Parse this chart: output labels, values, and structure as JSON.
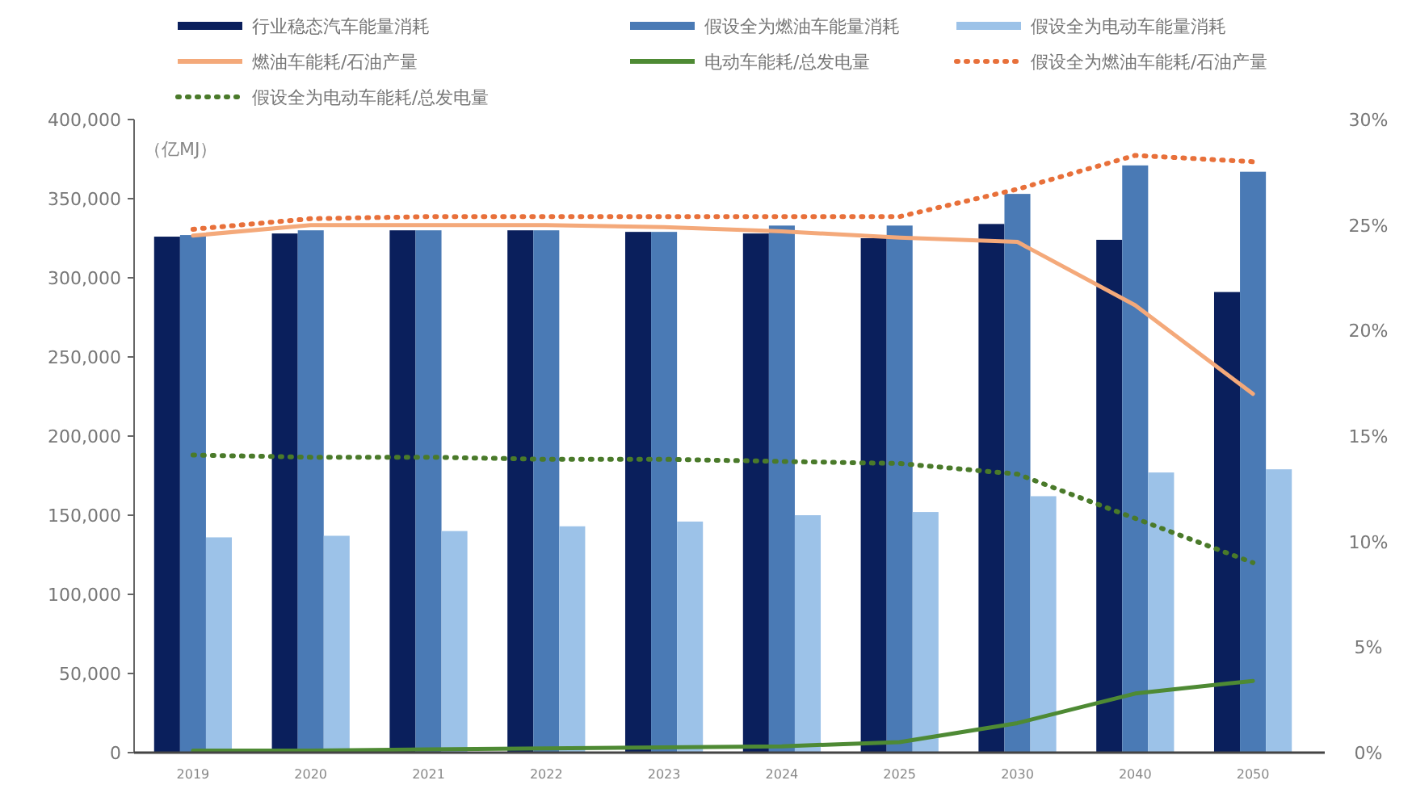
{
  "chart_data": {
    "type": "bar",
    "ylabel": "（亿MJ）",
    "categories": [
      "2019",
      "2020",
      "2021",
      "2022",
      "2023",
      "2024",
      "2025",
      "2030",
      "2040",
      "2050"
    ],
    "series": [
      {
        "name": "行业稳态汽车能量消耗",
        "color": "#0a1f5c",
        "values": [
          326000,
          328000,
          330000,
          330000,
          329000,
          328000,
          325000,
          334000,
          324000,
          291000
        ]
      },
      {
        "name": "假设全为燃油车能量消耗",
        "color": "#4a7ab5",
        "values": [
          327000,
          330000,
          330000,
          330000,
          329000,
          333000,
          333000,
          353000,
          371000,
          367000
        ]
      },
      {
        "name": "假设全为电动车能量消耗",
        "color": "#9cc2e8",
        "values": [
          136000,
          137000,
          140000,
          143000,
          146000,
          150000,
          152000,
          162000,
          177000,
          179000
        ]
      },
      {
        "name": "燃油车能耗/石油产量",
        "type": "line",
        "axis": "y2",
        "color": "#f4a97a",
        "line_style": "solid",
        "values": [
          24.5,
          25.0,
          25.0,
          25.0,
          24.9,
          24.7,
          24.4,
          24.2,
          21.2,
          17.0
        ]
      },
      {
        "name": "电动车能耗/总发电量",
        "type": "line",
        "axis": "y2",
        "color": "#4e8a34",
        "line_style": "solid",
        "values": [
          0.1,
          0.1,
          0.15,
          0.2,
          0.25,
          0.3,
          0.5,
          1.4,
          2.8,
          3.4
        ]
      },
      {
        "name": "假设全为燃油车能耗/石油产量",
        "type": "line",
        "axis": "y2",
        "color": "#e8703a",
        "line_style": "dotted",
        "values": [
          24.8,
          25.3,
          25.4,
          25.4,
          25.4,
          25.4,
          25.4,
          26.7,
          28.3,
          28.0
        ]
      },
      {
        "name": "假设全为电动车能耗/总发电量",
        "type": "line",
        "axis": "y2",
        "color": "#4a7a2a",
        "line_style": "dotted",
        "values": [
          14.1,
          14.0,
          14.0,
          13.9,
          13.9,
          13.8,
          13.7,
          13.2,
          11.1,
          9.0
        ]
      }
    ],
    "ylim": [
      0,
      400000
    ],
    "yticks": [
      0,
      {
        "value": 50000,
        "label": "50,000"
      },
      {
        "value": 100000,
        "label": "100,000"
      },
      {
        "value": 150000,
        "label": "150,000"
      },
      {
        "value": 200000,
        "label": "200,000"
      },
      {
        "value": 250000,
        "label": "250,000"
      },
      {
        "value": 300000,
        "label": "300,000"
      },
      {
        "value": 350000,
        "label": "350,000"
      },
      {
        "value": 400000,
        "label": "400,000"
      }
    ],
    "y2lim": [
      0,
      30
    ],
    "y2ticks": [
      {
        "value": 0,
        "label": "0%"
      },
      {
        "value": 5,
        "label": "5%"
      },
      {
        "value": 10,
        "label": "10%"
      },
      {
        "value": 15,
        "label": "15%"
      },
      {
        "value": 20,
        "label": "20%"
      },
      {
        "value": 25,
        "label": "25%"
      },
      {
        "value": 30,
        "label": "30%"
      }
    ],
    "legend": "top",
    "grid": false,
    "marker": "none"
  }
}
